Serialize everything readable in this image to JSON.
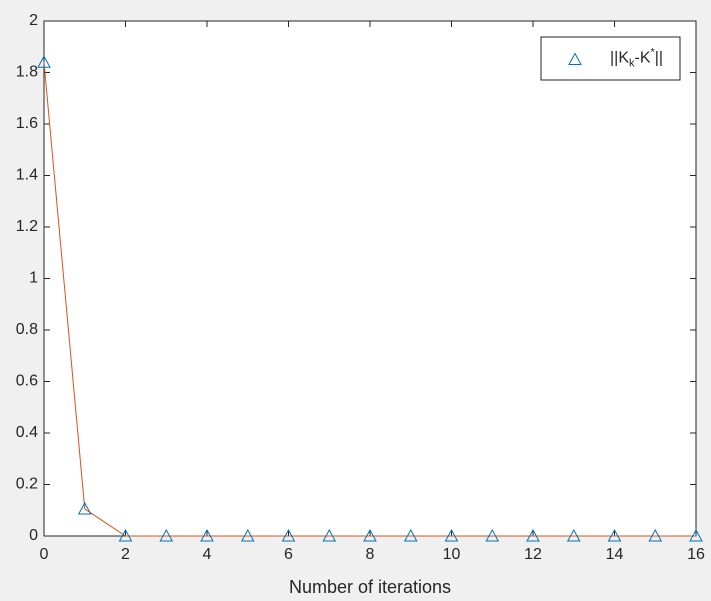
{
  "chart_data": {
    "type": "line",
    "x": [
      0,
      1,
      2,
      3,
      4,
      5,
      6,
      7,
      8,
      9,
      10,
      11,
      12,
      13,
      14,
      15,
      16
    ],
    "series": [
      {
        "name_segments": [
          {
            "text": "||K",
            "shift": "base"
          },
          {
            "text": "k",
            "shift": "sub"
          },
          {
            "text": "-K",
            "shift": "base"
          },
          {
            "text": "*",
            "shift": "super"
          },
          {
            "text": "||",
            "shift": "base"
          }
        ],
        "line_color": "#d95319",
        "marker_color": "#0072bd",
        "marker": "triangle",
        "values": [
          1.84,
          0.105,
          0,
          0,
          0,
          0,
          0,
          0,
          0,
          0,
          0,
          0,
          0,
          0,
          0,
          0,
          0
        ]
      }
    ],
    "xlabel": "Number of iterations",
    "xlim": [
      0,
      16
    ],
    "xticks": [
      0,
      2,
      4,
      6,
      8,
      10,
      12,
      14,
      16
    ],
    "ylim": [
      0,
      2
    ],
    "yticks": [
      0,
      0.2,
      0.4,
      0.6,
      0.8,
      1,
      1.2,
      1.4,
      1.6,
      1.8,
      2
    ],
    "grid": false,
    "legend_position": "top-right"
  }
}
